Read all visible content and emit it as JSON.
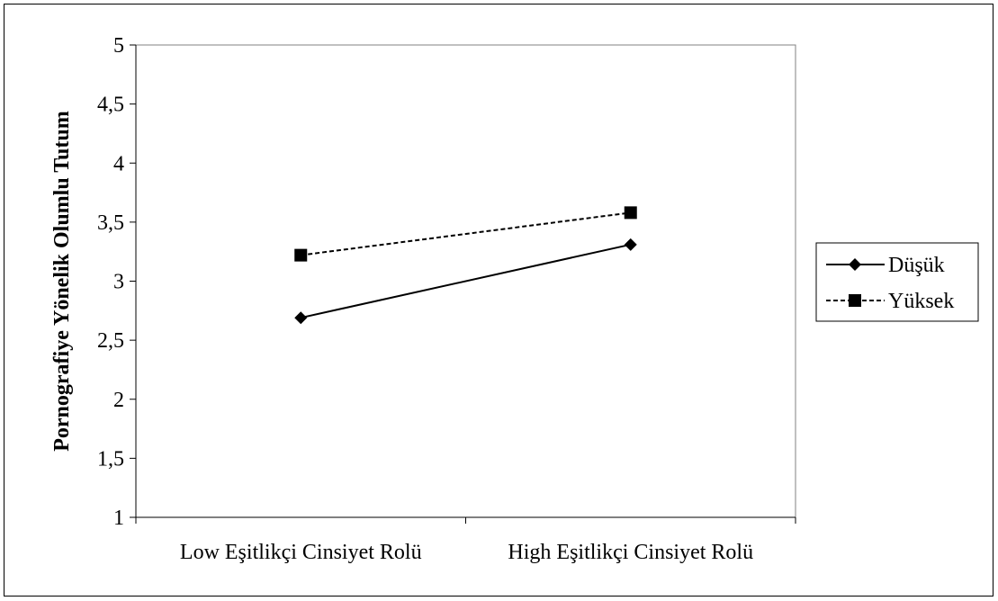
{
  "chart_data": {
    "type": "line",
    "categories": [
      "Low Eşitlikçi Cinsiyet Rolü",
      "High Eşitlikçi Cinsiyet Rolü"
    ],
    "series": [
      {
        "name": "Düşük",
        "values": [
          2.69,
          3.31
        ],
        "line_style": "solid",
        "marker": "diamond",
        "color": "#000000"
      },
      {
        "name": "Yüksek",
        "values": [
          3.22,
          3.58
        ],
        "line_style": "dashed",
        "marker": "square",
        "color": "#000000"
      }
    ],
    "title": "",
    "xlabel": "",
    "ylabel": "Pornografiye Yönelik Olumlu Tutum",
    "ylim": [
      1,
      5
    ],
    "yticks": [
      1,
      1.5,
      2,
      2.5,
      3,
      3.5,
      4,
      4.5,
      5
    ],
    "ytick_labels": [
      "1",
      "1,5",
      "2",
      "2,5",
      "3",
      "3,5",
      "4",
      "4,5",
      "5"
    ],
    "grid": false,
    "legend_position": "right"
  }
}
